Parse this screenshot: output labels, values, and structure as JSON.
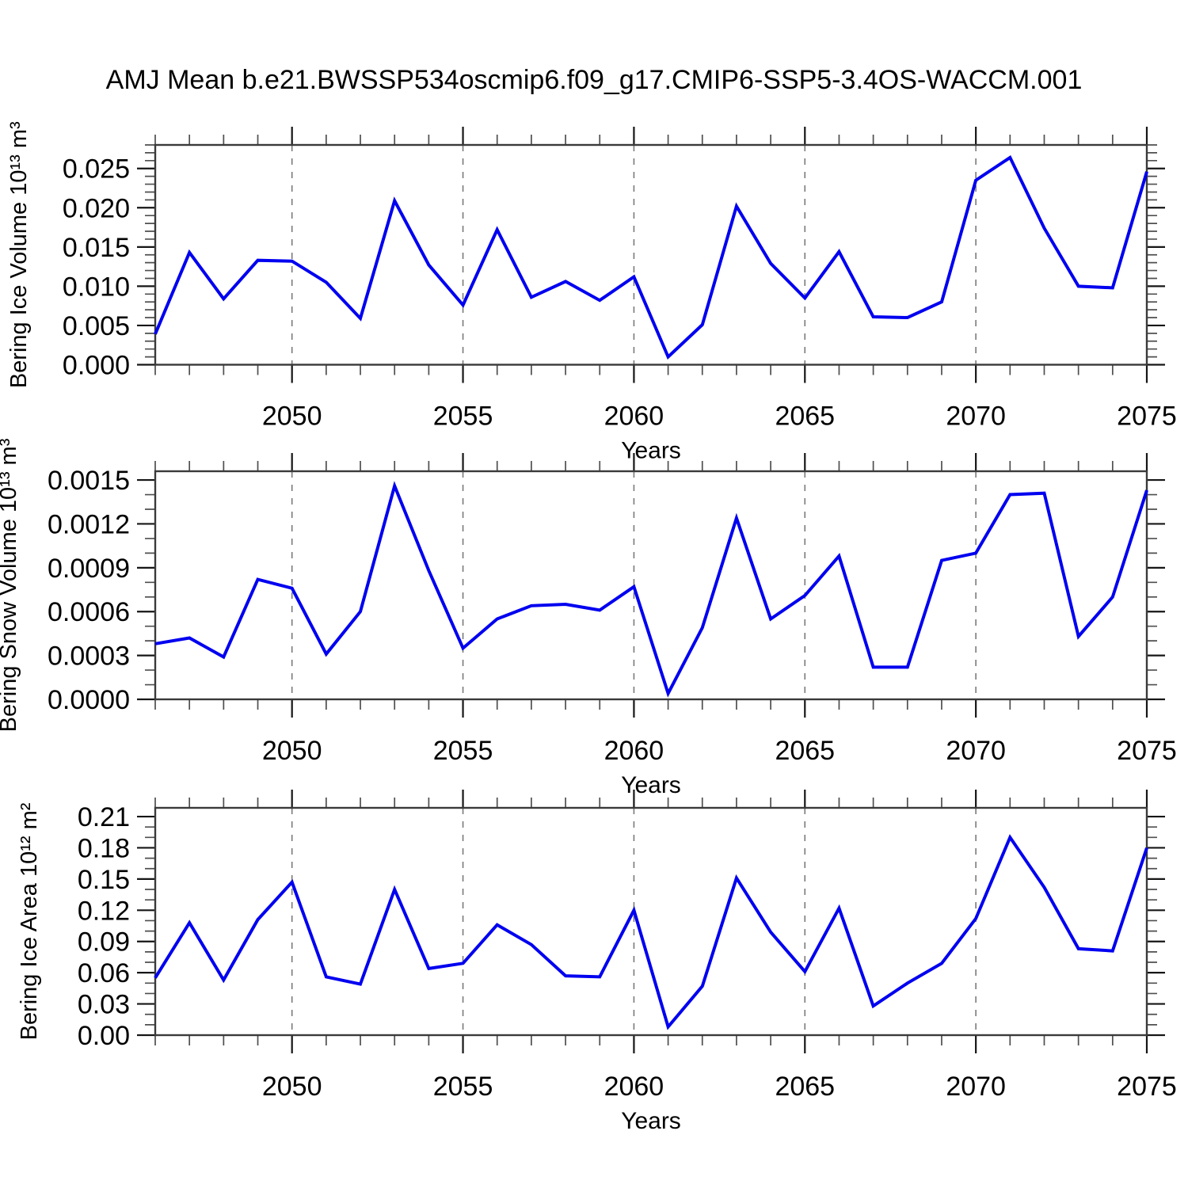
{
  "title": "AMJ Mean b.e21.BWSSP534oscmip6.f09_g17.CMIP6-SSP5-3.4OS-WACCM.001",
  "background": "#ffffff",
  "line_color": "#0000f0",
  "grid_color": "#7a7a7a",
  "chart_data": [
    {
      "type": "line",
      "id": "bering-ice-volume",
      "ylabel": "Bering Ice Volume 10¹³ m³",
      "xlabel": "Years",
      "x": [
        2046,
        2047,
        2048,
        2049,
        2050,
        2051,
        2052,
        2053,
        2054,
        2055,
        2056,
        2057,
        2058,
        2059,
        2060,
        2061,
        2062,
        2063,
        2064,
        2065,
        2066,
        2067,
        2068,
        2069,
        2070,
        2071,
        2072,
        2073,
        2074,
        2075
      ],
      "values": [
        0.0039,
        0.0143,
        0.0084,
        0.0133,
        0.0132,
        0.0105,
        0.0059,
        0.0209,
        0.0127,
        0.0076,
        0.0172,
        0.0086,
        0.0106,
        0.0082,
        0.0112,
        0.001,
        0.0051,
        0.0202,
        0.0129,
        0.0085,
        0.0144,
        0.0061,
        0.006,
        0.008,
        0.0235,
        0.0264,
        0.0174,
        0.01,
        0.0098,
        0.0246
      ],
      "xlim": [
        2046,
        2075
      ],
      "ylim": [
        0,
        0.028
      ],
      "ytick_major": 0.005,
      "ytick_minor": 0.001,
      "ytick_decimals": 3,
      "ytick_labels": [
        "0.000",
        "0.005",
        "0.010",
        "0.015",
        "0.020",
        "0.025"
      ],
      "xticks_major": [
        2050,
        2055,
        2060,
        2065,
        2070,
        2075
      ],
      "grid_years": [
        2050,
        2055,
        2060,
        2065,
        2070
      ],
      "grid_style": "vertical-dashed",
      "legend": "none"
    },
    {
      "type": "line",
      "id": "bering-snow-volume",
      "ylabel": "Bering Snow Volume 10¹³ m³",
      "xlabel": "Years",
      "x": [
        2046,
        2047,
        2048,
        2049,
        2050,
        2051,
        2052,
        2053,
        2054,
        2055,
        2056,
        2057,
        2058,
        2059,
        2060,
        2061,
        2062,
        2063,
        2064,
        2065,
        2066,
        2067,
        2068,
        2069,
        2070,
        2071,
        2072,
        2073,
        2074,
        2075
      ],
      "values": [
        0.00038,
        0.00042,
        0.00029,
        0.00082,
        0.00076,
        0.00031,
        0.0006,
        0.00146,
        0.00088,
        0.00035,
        0.00055,
        0.00064,
        0.00065,
        0.00061,
        0.00077,
        4e-05,
        0.00049,
        0.00124,
        0.00055,
        0.00071,
        0.00098,
        0.00022,
        0.00022,
        0.00095,
        0.001,
        0.0014,
        0.00141,
        0.00043,
        0.0007,
        0.00143
      ],
      "xlim": [
        2046,
        2075
      ],
      "ylim": [
        0,
        0.00156
      ],
      "ytick_major": 0.0003,
      "ytick_minor": 0.0001,
      "ytick_decimals": 4,
      "ytick_labels": [
        "0.0000",
        "0.0003",
        "0.0006",
        "0.0009",
        "0.0012",
        "0.0015"
      ],
      "xticks_major": [
        2050,
        2055,
        2060,
        2065,
        2070,
        2075
      ],
      "grid_years": [
        2050,
        2055,
        2060,
        2065,
        2070
      ],
      "grid_style": "vertical-dashed",
      "legend": "none"
    },
    {
      "type": "line",
      "id": "bering-ice-area",
      "ylabel": "Bering Ice Area 10¹² m²",
      "xlabel": "Years",
      "x": [
        2046,
        2047,
        2048,
        2049,
        2050,
        2051,
        2052,
        2053,
        2054,
        2055,
        2056,
        2057,
        2058,
        2059,
        2060,
        2061,
        2062,
        2063,
        2064,
        2065,
        2066,
        2067,
        2068,
        2069,
        2070,
        2071,
        2072,
        2073,
        2074,
        2075
      ],
      "values": [
        0.055,
        0.108,
        0.053,
        0.111,
        0.147,
        0.056,
        0.049,
        0.14,
        0.064,
        0.069,
        0.106,
        0.087,
        0.057,
        0.056,
        0.12,
        0.008,
        0.047,
        0.151,
        0.099,
        0.061,
        0.122,
        0.028,
        0.05,
        0.069,
        0.112,
        0.19,
        0.142,
        0.083,
        0.081,
        0.18
      ],
      "xlim": [
        2046,
        2075
      ],
      "ylim": [
        0,
        0.2184
      ],
      "ytick_major": 0.03,
      "ytick_minor": 0.01,
      "ytick_decimals": 2,
      "ytick_labels": [
        "0.00",
        "0.03",
        "0.06",
        "0.09",
        "0.12",
        "0.15",
        "0.18",
        "0.21"
      ],
      "xticks_major": [
        2050,
        2055,
        2060,
        2065,
        2070,
        2075
      ],
      "grid_years": [
        2050,
        2055,
        2060,
        2065,
        2070
      ],
      "grid_style": "vertical-dashed",
      "legend": "none"
    }
  ]
}
